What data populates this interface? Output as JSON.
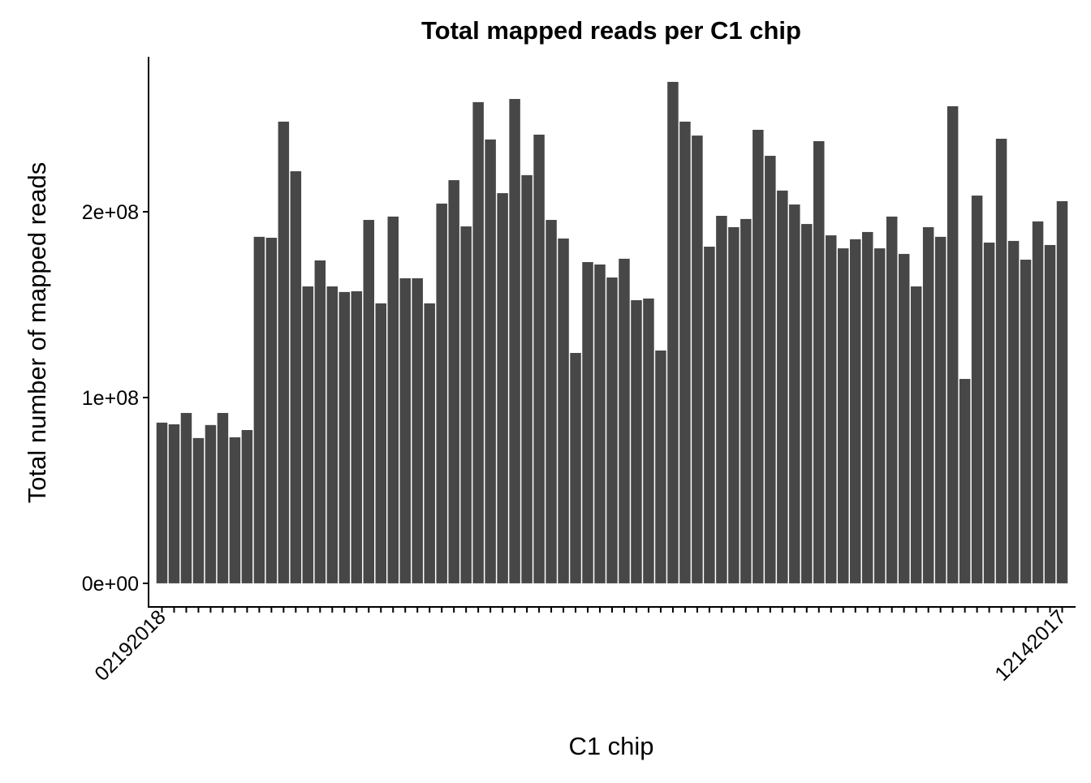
{
  "chart_data": {
    "type": "bar",
    "title": "Total mapped reads per C1 chip",
    "x_label": "C1 chip",
    "y_label": "Total number of mapped reads",
    "categories": [
      "02192018",
      null,
      null,
      null,
      null,
      null,
      null,
      null,
      null,
      null,
      null,
      null,
      null,
      null,
      null,
      null,
      null,
      null,
      null,
      null,
      null,
      null,
      null,
      null,
      null,
      null,
      null,
      null,
      null,
      null,
      null,
      null,
      null,
      null,
      null,
      null,
      null,
      null,
      null,
      null,
      null,
      null,
      null,
      null,
      null,
      null,
      null,
      null,
      null,
      null,
      null,
      null,
      null,
      null,
      null,
      null,
      null,
      null,
      null,
      null,
      null,
      null,
      null,
      null,
      null,
      null,
      null,
      null,
      null,
      null,
      null,
      null,
      null,
      null,
      "12142017"
    ],
    "values": [
      86500000,
      85600000,
      91700000,
      78200000,
      85200000,
      91700000,
      78600000,
      82500000,
      186500000,
      186000000,
      248500000,
      221800000,
      159800000,
      173800000,
      159800000,
      156800000,
      157200000,
      195600000,
      150700000,
      197400000,
      164200000,
      164200000,
      150700000,
      204400000,
      217000000,
      192100000,
      259000000,
      238900000,
      210000000,
      260700000,
      219700000,
      241500000,
      195600000,
      185600000,
      124000000,
      172900000,
      171600000,
      164600000,
      174700000,
      152400000,
      153300000,
      125300000,
      269900000,
      248500000,
      241000000,
      181200000,
      197800000,
      191700000,
      196100000,
      244100000,
      230100000,
      211400000,
      203900000,
      193400000,
      238000000,
      187300000,
      180300000,
      185200000,
      189100000,
      180300000,
      197400000,
      177300000,
      159800000,
      191700000,
      186500000,
      256800000,
      110000000,
      208700000,
      183400000,
      239300000,
      184300000,
      174200000,
      194800000,
      182100000,
      205700000
    ],
    "color": "#474747",
    "ylim": [
      -12700000,
      283400000
    ],
    "yticks": [
      {
        "value": 0,
        "label": "0e+00"
      },
      {
        "value": 100000000,
        "label": "1e+08"
      },
      {
        "value": 200000000,
        "label": "2e+08"
      }
    ],
    "grid": false
  }
}
